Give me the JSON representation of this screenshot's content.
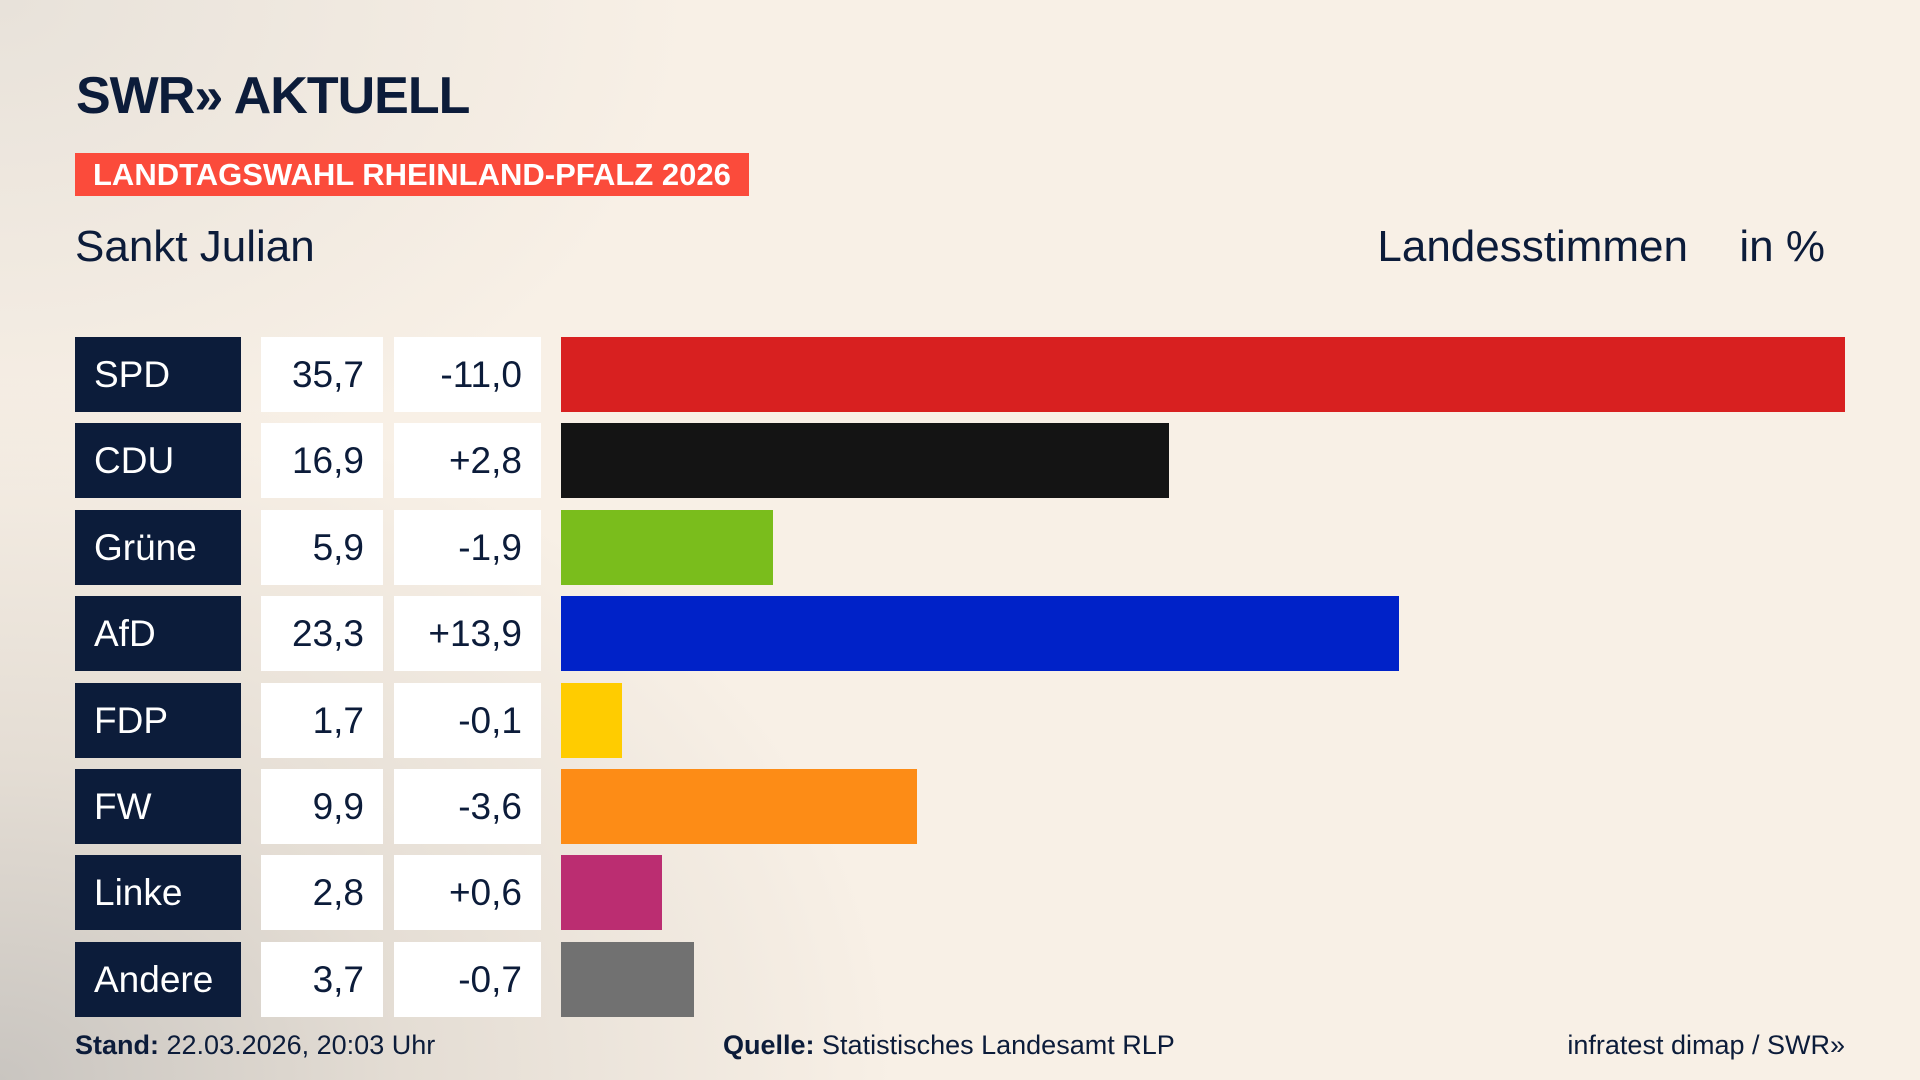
{
  "header": {
    "logo": "SWR» AKTUELL",
    "banner": "LANDTAGSWAHL RHEINLAND-PFALZ 2026",
    "subtitle": "Sankt Julian",
    "measure": "Landesstimmen",
    "unit": "in %"
  },
  "chart_data": {
    "type": "bar",
    "orientation": "horizontal",
    "xlim": [
      0,
      35.7
    ],
    "categories": [
      "SPD",
      "CDU",
      "Grüne",
      "AfD",
      "FDP",
      "FW",
      "Linke",
      "Andere"
    ],
    "values": [
      35.7,
      16.9,
      5.9,
      23.3,
      1.7,
      9.9,
      2.8,
      3.7
    ],
    "value_labels": [
      "35,7",
      "16,9",
      "5,9",
      "23,3",
      "1,7",
      "9,9",
      "2,8",
      "3,7"
    ],
    "diff_labels": [
      "-11,0",
      "+2,8",
      "-1,9",
      "+13,9",
      "-0,1",
      "-3,6",
      "+0,6",
      "-0,7"
    ],
    "colors": [
      "#d82020",
      "#141414",
      "#7abd1c",
      "#0022c8",
      "#ffcc00",
      "#fd8c16",
      "#bb2d71",
      "#717171"
    ]
  },
  "footer": {
    "stand_label": "Stand:",
    "stand_value": "22.03.2026, 20:03 Uhr",
    "source_label": "Quelle:",
    "source_value": "Statistisches Landesamt RLP",
    "credit": "infratest dimap / SWR»"
  }
}
